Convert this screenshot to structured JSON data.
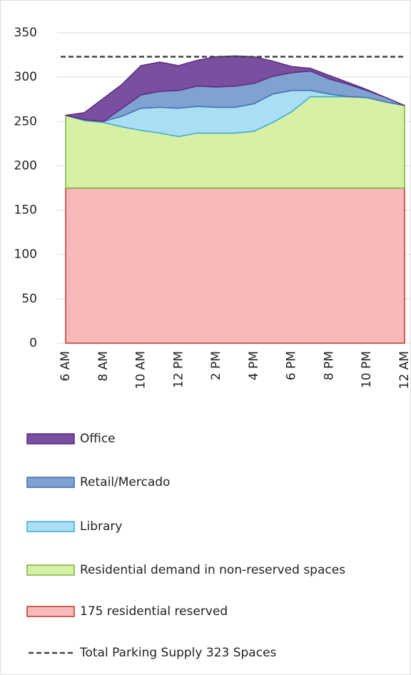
{
  "chart_data": {
    "type": "stacked_area",
    "categories": [
      "6 AM",
      null,
      "8 AM",
      null,
      "10 AM",
      null,
      "12 PM",
      null,
      "2 PM",
      null,
      "4 PM",
      null,
      "6 PM",
      null,
      "8 PM",
      null,
      "10 PM",
      null,
      "12 AM"
    ],
    "series": [
      {
        "name": "175 residential reserved",
        "color": "#f7b9b9",
        "stroke": "#c0392b",
        "values": [
          175,
          175,
          175,
          175,
          175,
          175,
          175,
          175,
          175,
          175,
          175,
          175,
          175,
          175,
          175,
          175,
          175,
          175,
          175
        ]
      },
      {
        "name": "Residential demand in non-reserved spaces",
        "color": "#d6f0a6",
        "stroke": "#7cb342",
        "values": [
          82,
          76,
          74,
          69,
          65,
          62,
          58,
          62,
          62,
          62,
          64,
          74,
          86,
          103,
          103,
          103,
          102,
          97,
          93
        ]
      },
      {
        "name": "Library",
        "color": "#a9def5",
        "stroke": "#3fa9d6",
        "values": [
          0,
          1,
          1,
          12,
          25,
          29,
          32,
          30,
          29,
          29,
          31,
          32,
          24,
          7,
          3,
          0,
          0,
          0,
          0
        ]
      },
      {
        "name": "Retail/Mercado",
        "color": "#7fa2d0",
        "stroke": "#3f6fae",
        "values": [
          0,
          0,
          0,
          9,
          15,
          18,
          20,
          23,
          23,
          24,
          23,
          20,
          20,
          22,
          17,
          14,
          8,
          5,
          0
        ]
      },
      {
        "name": "Office",
        "color": "#7a4fa0",
        "stroke": "#5b2a80",
        "values": [
          0,
          8,
          26,
          27,
          33,
          33,
          28,
          29,
          34,
          34,
          30,
          17,
          7,
          3,
          4,
          2,
          1,
          0,
          0
        ]
      }
    ],
    "supply_line": {
      "name": "Total Parking Supply 323 Spaces",
      "value": 323,
      "color": "#444444"
    },
    "ylim": [
      0,
      350
    ],
    "yticks": [
      0,
      50,
      100,
      150,
      200,
      250,
      300,
      350
    ],
    "grid": true
  }
}
